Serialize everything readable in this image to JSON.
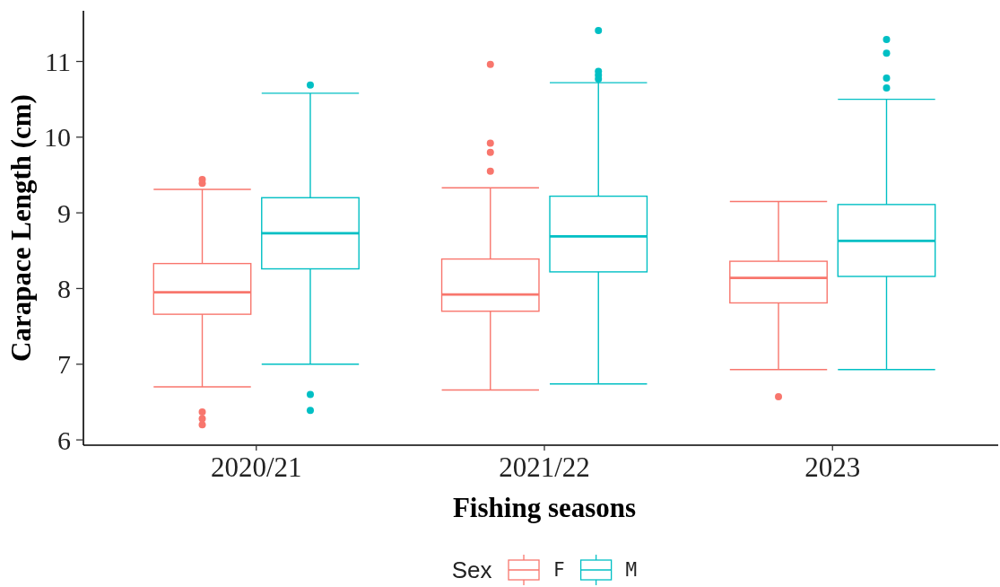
{
  "chart_data": {
    "type": "box",
    "categories": [
      "2020/21",
      "2021/22",
      "2023"
    ],
    "xlabel": "Fishing seasons",
    "ylabel": "Carapace Length (cm)",
    "legend_title": "Sex",
    "legend": "bottom",
    "grid": false,
    "ylim": [
      5.93,
      11.67
    ],
    "yticks": [
      6,
      7,
      8,
      9,
      10,
      11
    ],
    "series": [
      {
        "name": "F",
        "color": "#f8766d",
        "boxes": [
          {
            "low": 6.7,
            "q1": 7.66,
            "median": 7.95,
            "q3": 8.33,
            "high": 9.31,
            "outliers": [
              9.44,
              9.39,
              6.37,
              6.28,
              6.2
            ]
          },
          {
            "low": 6.66,
            "q1": 7.7,
            "median": 7.92,
            "q3": 8.39,
            "high": 9.33,
            "outliers": [
              10.96,
              9.92,
              9.8,
              9.55
            ]
          },
          {
            "low": 6.93,
            "q1": 7.81,
            "median": 8.14,
            "q3": 8.36,
            "high": 9.15,
            "outliers": [
              6.57
            ]
          }
        ]
      },
      {
        "name": "M",
        "color": "#00bfc4",
        "boxes": [
          {
            "low": 7.0,
            "q1": 8.26,
            "median": 8.73,
            "q3": 9.2,
            "high": 10.58,
            "outliers": [
              10.69,
              6.6,
              6.39
            ]
          },
          {
            "low": 6.74,
            "q1": 8.22,
            "median": 8.69,
            "q3": 9.22,
            "high": 10.72,
            "outliers": [
              11.41,
              10.87,
              10.82,
              10.77
            ]
          },
          {
            "low": 6.93,
            "q1": 8.16,
            "median": 8.63,
            "q3": 9.11,
            "high": 10.5,
            "outliers": [
              11.29,
              11.11,
              10.78,
              10.65
            ]
          }
        ]
      }
    ]
  }
}
